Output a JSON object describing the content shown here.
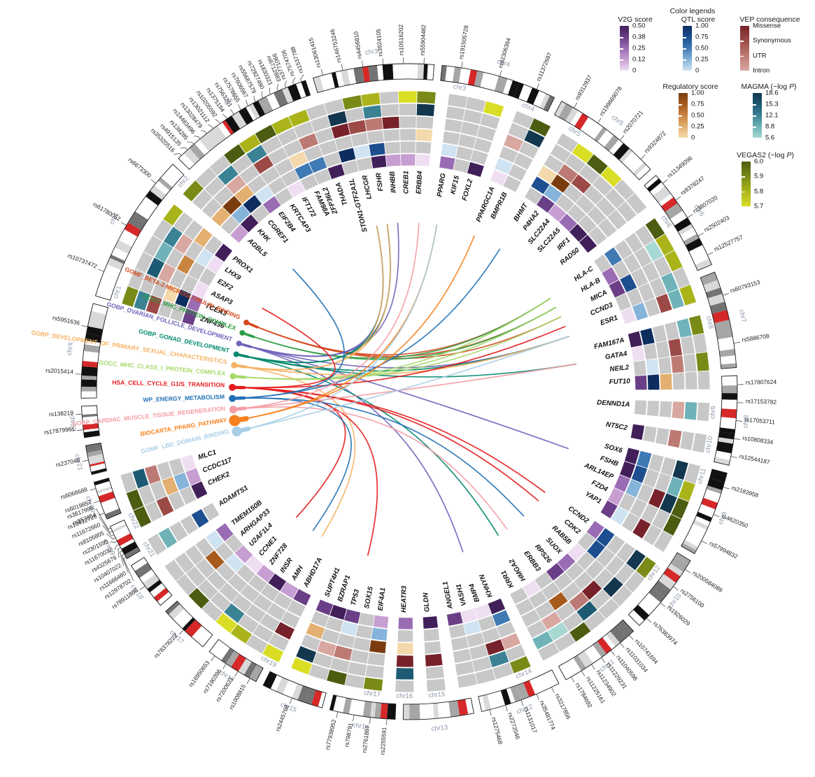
{
  "legends_header": "Color legends",
  "legends": [
    {
      "id": "v2g",
      "title": "V2G score",
      "labels": [
        "0.50",
        "0.38",
        "0.25",
        "0.12",
        "0"
      ],
      "colors": [
        "#411f59",
        "#6b3f87",
        "#9a6cb3",
        "#c79ed1",
        "#efdef2"
      ]
    },
    {
      "id": "qtl",
      "title": "QTL score",
      "labels": [
        "1.00",
        "0.75",
        "0.50",
        "0.25",
        "0"
      ],
      "colors": [
        "#0c2d5e",
        "#1d4e8f",
        "#3f7ab5",
        "#86b3da",
        "#cfe3f2"
      ]
    },
    {
      "id": "vep",
      "title": "VEP consequence",
      "labels": [
        "Missense",
        "Synonymous",
        "UTR",
        "Intron"
      ],
      "colors": [
        "#77222a",
        "#9c4a47",
        "#bd7a74",
        "#d8a7a0"
      ]
    },
    {
      "id": "reg",
      "title": "Regulatory score",
      "labels": [
        "1.00",
        "0.75",
        "0.50",
        "0.25",
        "0"
      ],
      "colors": [
        "#7a3c0f",
        "#a65b1d",
        "#c98440",
        "#e3b071",
        "#f3d9ab"
      ]
    },
    {
      "id": "magma",
      "title": "MAGMA (−log P)",
      "labels": [
        "18.6",
        "15.3",
        "12.1",
        "8.8",
        "5.6"
      ],
      "colors": [
        "#12374e",
        "#1d5a73",
        "#3a8294",
        "#6fb3b8",
        "#a8d8d4"
      ]
    },
    {
      "id": "vegas2",
      "title": "VEGAS2 (−log P)",
      "labels": [
        "6.0",
        "5.9",
        "5.8",
        "5.7"
      ],
      "colors": [
        "#4c5c10",
        "#7a8a16",
        "#aab41a",
        "#d9de25"
      ]
    }
  ],
  "chart_data": {
    "type": "circos",
    "tracks_outer_to_inner": [
      "VEGAS2 (−log P)",
      "MAGMA (−log P)",
      "VEP consequence",
      "Regulatory score",
      "QTL score",
      "V2G score"
    ],
    "colors": {
      "heatmap_empty": "#c8c8c8",
      "centromere": "#d62828",
      "ideogram_outline": "#1a1a1a",
      "leader": "#333333"
    },
    "chromosomes": [
      {
        "name": "chr1",
        "size": 249,
        "cen": 0.5,
        "snps": [
          "rs10737472",
          "rs61780052",
          "rs6673300"
        ],
        "genes": [
          "ZNF436",
          "TCEA3",
          "ASAP3",
          "E2F2",
          "LHX9",
          "PROX1"
        ]
      },
      {
        "name": "chr2",
        "size": 243,
        "cen": 0.38,
        "snps": [
          "rs35320516",
          "rs4915135",
          "rs138285",
          "rs14483496",
          "rs13028479",
          "rs13021112",
          "rs10205592",
          "rs1375194",
          "rs7563201",
          "rs7578655",
          "rs7606567",
          "rs55687579",
          "rs72827480",
          "rs1830321",
          "rs6712883",
          "rs3771066",
          "rs7574706",
          "rs1537788"
        ],
        "genes": [
          "AGBL5",
          "KHK",
          "CGREF1",
          "EIF2B4",
          "KRTCAP3",
          "IFT172",
          "FAM98A",
          "ZFP36L2",
          "THADA",
          "STON1-GTF2A1L",
          "LHCGR",
          "FSHR",
          "INHBB",
          "CREB1",
          "ERBB4"
        ]
      },
      {
        "name": "chr3",
        "size": 198,
        "cen": 0.45,
        "snps": [
          "rs13061415",
          "rs146753246",
          "rs4456810",
          "rs3924105",
          "rs10516202",
          "rs55904482"
        ],
        "genes": [
          "PPARG",
          "KIF15",
          "FOXL2"
        ]
      },
      {
        "name": "chr4",
        "size": 190,
        "cen": 0.26,
        "snps": [
          "rs191505728",
          "rs62306364",
          "rs11372697"
        ],
        "genes": [
          "PPARGC1A",
          "BMPR1B"
        ]
      },
      {
        "name": "chr5",
        "size": 182,
        "cen": 0.27,
        "snps": [
          "rs9312937",
          "rs199669078",
          "rs2070721",
          "rs9324872"
        ],
        "genes": [
          "BHMT",
          "P4HA2",
          "SLC22A4",
          "SLC22A5",
          "IRF1",
          "RAD50"
        ]
      },
      {
        "name": "chr6",
        "size": 171,
        "cen": 0.35,
        "snps": [
          "rs11349096",
          "rs9378247",
          "rs3807020",
          "rs2502403",
          "rs12527757"
        ],
        "genes": [
          "HLA-C",
          "HLA-B",
          "MICA",
          "CCND3",
          "ESR1"
        ]
      },
      {
        "name": "chr7",
        "size": 159,
        "cen": 0.38,
        "snps": [
          "rs60793153",
          "rs5886708"
        ],
        "genes": []
      },
      {
        "name": "chr8",
        "size": 146,
        "cen": 0.31,
        "snps": [
          "rs17807624",
          "rs17153782",
          "rs17053711",
          "rs10808334",
          "rs12544187"
        ],
        "genes": [
          "FAM167A",
          "GATA4",
          "NEIL2",
          "FUT10"
        ]
      },
      {
        "name": "chr9",
        "size": 141,
        "cen": 0.35,
        "snps": [
          "rs2183958",
          "rs4620350",
          "rs57994832"
        ],
        "genes": [
          "DENND1A"
        ]
      },
      {
        "name": "chr10",
        "size": 134,
        "cen": 0.3,
        "snps": [
          "rs200584089",
          "rs2756100",
          "rs1926029",
          "rs76383974"
        ],
        "genes": [
          "NT5C2"
        ]
      },
      {
        "name": "chr11",
        "size": 135,
        "cen": 0.4,
        "snps": [
          "rs10741694",
          "rs11031034",
          "rs11040598",
          "rs11229231",
          "rs11234902",
          "rs11225161",
          "rs1784692"
        ],
        "genes": [
          "SOX6",
          "FSHB",
          "ARL14EP",
          "FZD4",
          "YAP1"
        ]
      },
      {
        "name": "chr12",
        "size": 133,
        "cen": 0.27,
        "snps": [
          "rs3217856",
          "rs35481774",
          "rs1131017",
          "rs2272046",
          "rs1275468"
        ],
        "genes": [
          "CCND2",
          "CDK2",
          "RAB5B",
          "SUOX",
          "RPS26",
          "ERBB3",
          "HMGA2",
          "KRR1"
        ]
      },
      {
        "name": "chr13",
        "size": 115,
        "cen": 0.15,
        "snps": [],
        "genes": []
      },
      {
        "name": "chr14",
        "size": 107,
        "cen": 0.16,
        "snps": [
          "rs2255591",
          "rs2761887",
          "rs798791",
          "rs77938952"
        ],
        "genes": [
          "KHNYN",
          "BMP4",
          "VASH1",
          "ANGEL1"
        ]
      },
      {
        "name": "chr15",
        "size": 102,
        "cen": 0.17,
        "snps": [
          "rs2445768"
        ],
        "genes": [
          "GLDN"
        ]
      },
      {
        "name": "chr16",
        "size": 90,
        "cen": 0.4,
        "snps": [
          "rs1008815",
          "rs7200621",
          "rs7190396",
          "rs16950653"
        ],
        "genes": [
          "HEATR3"
        ]
      },
      {
        "name": "chr17",
        "size": 83,
        "cen": 0.29,
        "snps": [
          "rs78378222"
        ],
        "genes": [
          "EIF4A1",
          "SOX15",
          "TP53",
          "BZRAP1",
          "SUPT4H1"
        ]
      },
      {
        "name": "chr18",
        "size": 80,
        "cen": 0.22,
        "snps": [
          "rs78911886"
        ],
        "genes": []
      },
      {
        "name": "chr19",
        "size": 59,
        "cen": 0.45,
        "snps": [
          "rs12978702",
          "rs11666480",
          "rs10407022",
          "rs4325676",
          "rs11670032",
          "rs2301595",
          "rs8105805",
          "rs11672660",
          "rs10412726",
          "rs3817996"
        ],
        "genes": [
          "ABHD17A",
          "AMH",
          "INSR",
          "ZNF728",
          "CCNE1",
          "U2AF1L4",
          "ARHGAP33",
          "TMEM150B"
        ]
      },
      {
        "name": "chr20",
        "size": 63,
        "cen": 0.44,
        "snps": [
          "rs853854",
          "rs6019857",
          "rs6068688"
        ],
        "genes": []
      },
      {
        "name": "chr21",
        "size": 48,
        "cen": 0.27,
        "snps": [
          "rs237048"
        ],
        "genes": [
          "ADAMTS1"
        ]
      },
      {
        "name": "chr22",
        "size": 51,
        "cen": 0.29,
        "snps": [
          "rs17879961",
          "rs138219"
        ],
        "genes": [
          "CHEK2",
          "CCDC117",
          "MLC1"
        ]
      },
      {
        "name": "chrX",
        "size": 155,
        "cen": 0.39,
        "snps": [
          "rs2015414",
          "rs5951636"
        ],
        "genes": []
      }
    ],
    "pathways": [
      {
        "label": "GOMF_BETA-2-MICROGLOBULIN_BINDING",
        "color": "#d4491f",
        "dot": 4,
        "genes": [
          "HLA-C",
          "HLA-B",
          "MICA"
        ]
      },
      {
        "label": "GOCC_MHC_PROTEIN_COMPLEX",
        "color": "#2f9e44",
        "dot": 4,
        "genes": [
          "HLA-C",
          "HLA-B"
        ]
      },
      {
        "label": "GOBP_OVARIAN_FOLLICLE_DEVELOPMENT",
        "color": "#6f63bb",
        "dot": 4,
        "genes": [
          "FSHR",
          "LHCGR",
          "INHBB",
          "FSHB",
          "ESR1",
          "BMP4"
        ]
      },
      {
        "label": "GOBP_GONAD_DEVELOPMENT",
        "color": "#00876c",
        "dot": 4,
        "genes": [
          "LHCGR",
          "FSHR",
          "GATA4",
          "ESR1",
          "HMGA2"
        ]
      },
      {
        "label": "GOBP_DEVELOPMENT_OF_PRIMARY_SEXUAL_CHARACTERISTICS",
        "color": "#f4b266",
        "dot": 4.5,
        "genes": [
          "LHCGR",
          "FSHR",
          "ESR1",
          "AMH"
        ]
      },
      {
        "label": "GOCC_MHC_CLASS_I_PROTEIN_COMPLEX",
        "color": "#a5d96b",
        "dot": 4.5,
        "genes": [
          "HLA-C",
          "HLA-B",
          "MICA"
        ]
      },
      {
        "label": "HSA_CELL_CYCLE_G1/S_TRANSITION",
        "color": "#e41a1c",
        "dot": 5,
        "genes": [
          "E2F2",
          "CCND3",
          "CCND2",
          "CDK2",
          "CCNE1",
          "TP53"
        ]
      },
      {
        "label": "WP_ENERGY_METABOLISM",
        "color": "#2171b5",
        "dot": 5,
        "genes": [
          "KHK",
          "BHMT",
          "SUOX",
          "INSR"
        ]
      },
      {
        "label": "GOBP_CARDIAC_MUSCLE_TISSUE_REGENERATION",
        "color": "#f49ca4",
        "dot": 5.5,
        "genes": [
          "ERBB4",
          "ERBB3",
          "GATA4"
        ]
      },
      {
        "label": "BIOCARTA_PPARG_PATHWAY",
        "color": "#f5821f",
        "dot": 8,
        "genes": [
          "PPARG",
          "PPARGC1A"
        ]
      },
      {
        "label": "GOMF_LBD_DOMAIN_BINDING",
        "color": "#a8cee5",
        "dot": 7,
        "genes": [
          "ESR1",
          "PPARG"
        ]
      }
    ]
  }
}
